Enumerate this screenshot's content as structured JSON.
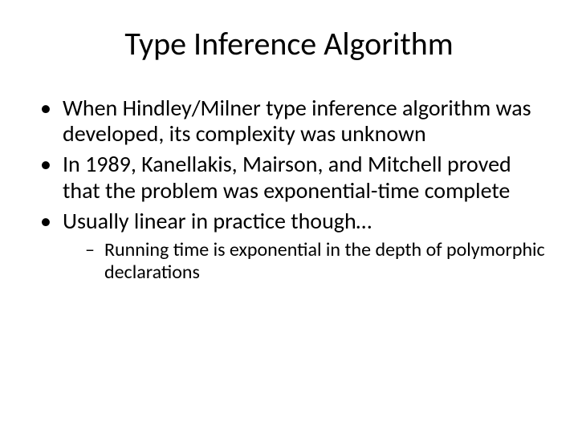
{
  "slide": {
    "title": "Type Inference Algorithm",
    "bullets": [
      "When Hindley/Milner type inference algorithm was developed, its complexity was unknown",
      "In 1989, Kanellakis, Mairson, and Mitchell proved that the problem was exponential-time complete",
      "Usually linear in practice though…"
    ],
    "sub_bullets_2": [
      "Running time is exponential in the depth of polymorphic declarations"
    ]
  },
  "style": {
    "background_color": "#ffffff",
    "text_color": "#000000",
    "title_fontsize": 40,
    "bullet_fontsize": 28,
    "sub_bullet_fontsize": 24,
    "font_family": "Calibri"
  }
}
